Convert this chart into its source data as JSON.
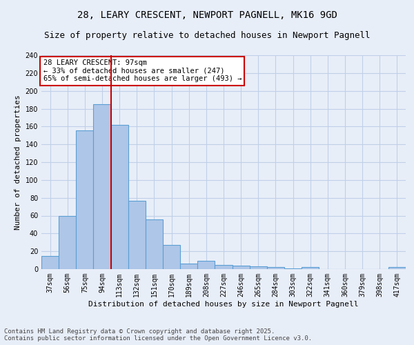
{
  "title": "28, LEARY CRESCENT, NEWPORT PAGNELL, MK16 9GD",
  "subtitle": "Size of property relative to detached houses in Newport Pagnell",
  "xlabel": "Distribution of detached houses by size in Newport Pagnell",
  "ylabel": "Number of detached properties",
  "categories": [
    "37sqm",
    "56sqm",
    "75sqm",
    "94sqm",
    "113sqm",
    "132sqm",
    "151sqm",
    "170sqm",
    "189sqm",
    "208sqm",
    "227sqm",
    "246sqm",
    "265sqm",
    "284sqm",
    "303sqm",
    "322sqm",
    "341sqm",
    "360sqm",
    "379sqm",
    "398sqm",
    "417sqm"
  ],
  "values": [
    15,
    60,
    156,
    185,
    162,
    77,
    56,
    27,
    6,
    9,
    5,
    4,
    3,
    2,
    1,
    2,
    0,
    0,
    0,
    0,
    2
  ],
  "bar_color": "#aec6e8",
  "bar_edge_color": "#5a9fd4",
  "vline_x_index": 3,
  "vline_color": "#cc0000",
  "annotation_text": "28 LEARY CRESCENT: 97sqm\n← 33% of detached houses are smaller (247)\n65% of semi-detached houses are larger (493) →",
  "annotation_box_color": "#ffffff",
  "annotation_box_edge_color": "#cc0000",
  "ylim": [
    0,
    240
  ],
  "yticks": [
    0,
    20,
    40,
    60,
    80,
    100,
    120,
    140,
    160,
    180,
    200,
    220,
    240
  ],
  "grid_color": "#c0cfe8",
  "background_color": "#e8eef8",
  "footer_text": "Contains HM Land Registry data © Crown copyright and database right 2025.\nContains public sector information licensed under the Open Government Licence v3.0.",
  "title_fontsize": 10,
  "subtitle_fontsize": 9,
  "axis_label_fontsize": 8,
  "tick_fontsize": 7,
  "annotation_fontsize": 7.5,
  "footer_fontsize": 6.5
}
